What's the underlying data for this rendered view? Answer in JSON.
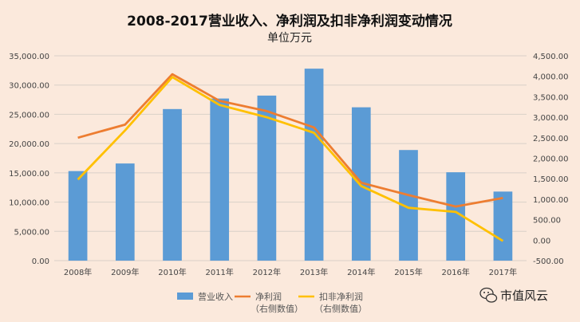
{
  "chart_data": {
    "type": "bar",
    "title": "2008-2017营业收入、净利润及扣非净利润变动情况",
    "subtitle": "单位万元",
    "categories": [
      "2008年",
      "2009年",
      "2010年",
      "2011年",
      "2012年",
      "2013年",
      "2014年",
      "2015年",
      "2016年",
      "2017年"
    ],
    "series": [
      {
        "name": "营业收入",
        "type": "bar",
        "axis": "left",
        "color": "#5b9bd5",
        "values": [
          15300,
          16600,
          25900,
          27700,
          28200,
          32800,
          26200,
          18900,
          15100,
          11800
        ]
      },
      {
        "name": "净利润",
        "name_line2": "（右侧数值）",
        "type": "line",
        "axis": "right",
        "color": "#ed7d31",
        "values": [
          2500,
          2820,
          4050,
          3400,
          3150,
          2750,
          1400,
          1100,
          820,
          1030
        ]
      },
      {
        "name": "扣非净利润",
        "name_line2": "（右侧数值）",
        "type": "line",
        "axis": "right",
        "color": "#ffc000",
        "values": [
          1480,
          2680,
          3980,
          3300,
          3000,
          2620,
          1320,
          790,
          690,
          -20
        ]
      }
    ],
    "left_axis": {
      "ylim": [
        0,
        35000
      ],
      "ticks": [
        "0.00",
        "5,000.00",
        "10,000.00",
        "15,000.00",
        "20,000.00",
        "25,000.00",
        "30,000.00",
        "35,000.00"
      ]
    },
    "right_axis": {
      "ylim": [
        -500,
        4500
      ],
      "ticks": [
        "-500.00",
        "0.00",
        "500.00",
        "1,000.00",
        "1,500.00",
        "2,000.00",
        "2,500.00",
        "3,000.00",
        "3,500.00",
        "4,000.00",
        "4,500.00"
      ]
    },
    "grid": true,
    "legend_position": "bottom"
  },
  "watermark": {
    "text": "市值风云",
    "icon": "wechat-icon"
  }
}
